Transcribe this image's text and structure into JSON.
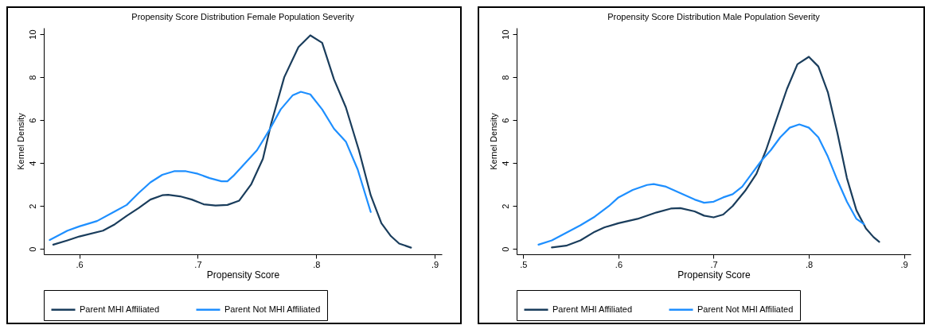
{
  "chart_data": [
    {
      "type": "line",
      "title": "Propensity Score Distribution Female Population Severity",
      "xlabel": "Propensity Score",
      "ylabel": "Kernel Density",
      "xlim": [
        0.57,
        0.906
      ],
      "ylim": [
        -0.25,
        10.3
      ],
      "xticks": [
        {
          "value": 0.6,
          "label": ".6"
        },
        {
          "value": 0.7,
          "label": ".7"
        },
        {
          "value": 0.8,
          "label": ".8"
        },
        {
          "value": 0.9,
          "label": ".9"
        }
      ],
      "yticks": [
        0,
        2,
        4,
        6,
        8,
        10
      ],
      "grid": false,
      "legend": "bottom",
      "marker": "none",
      "line_style": "solid",
      "series": [
        {
          "name": "Parent MHI Affiliated",
          "color": "#1a3d5c",
          "x": [
            0.578,
            0.59,
            0.6,
            0.62,
            0.63,
            0.64,
            0.65,
            0.66,
            0.67,
            0.675,
            0.685,
            0.695,
            0.705,
            0.715,
            0.725,
            0.735,
            0.745,
            0.755,
            0.762,
            0.773,
            0.785,
            0.795,
            0.805,
            0.815,
            0.825,
            0.836,
            0.846,
            0.855,
            0.863,
            0.87,
            0.88
          ],
          "values": [
            0.2,
            0.4,
            0.58,
            0.85,
            1.15,
            1.54,
            1.9,
            2.3,
            2.5,
            2.52,
            2.45,
            2.3,
            2.08,
            2.02,
            2.05,
            2.25,
            3.0,
            4.2,
            5.85,
            8.0,
            9.4,
            9.95,
            9.6,
            7.9,
            6.6,
            4.6,
            2.5,
            1.2,
            0.6,
            0.25,
            0.06
          ]
        },
        {
          "name": "Parent Not MHI Affiliated",
          "color": "#1e8fff",
          "x": [
            0.575,
            0.59,
            0.6,
            0.615,
            0.63,
            0.64,
            0.65,
            0.66,
            0.67,
            0.68,
            0.69,
            0.7,
            0.71,
            0.72,
            0.725,
            0.73,
            0.74,
            0.75,
            0.76,
            0.77,
            0.78,
            0.787,
            0.795,
            0.805,
            0.815,
            0.825,
            0.835,
            0.846
          ],
          "values": [
            0.42,
            0.85,
            1.05,
            1.3,
            1.75,
            2.05,
            2.6,
            3.1,
            3.45,
            3.62,
            3.62,
            3.5,
            3.3,
            3.15,
            3.15,
            3.4,
            4.0,
            4.6,
            5.5,
            6.5,
            7.15,
            7.32,
            7.2,
            6.5,
            5.6,
            5.0,
            3.7,
            1.72
          ]
        }
      ]
    },
    {
      "type": "line",
      "title": "Propensity Score Distribution Male Population Severity",
      "xlabel": "Propensity Score",
      "ylabel": "Kernel Density",
      "xlim": [
        0.493,
        0.907
      ],
      "ylim": [
        -0.25,
        10.3
      ],
      "xticks": [
        {
          "value": 0.5,
          "label": ".5"
        },
        {
          "value": 0.6,
          "label": ".6"
        },
        {
          "value": 0.7,
          "label": ".7"
        },
        {
          "value": 0.8,
          "label": ".8"
        },
        {
          "value": 0.9,
          "label": ".9"
        }
      ],
      "yticks": [
        0,
        2,
        4,
        6,
        8,
        10
      ],
      "grid": false,
      "legend": "bottom",
      "marker": "none",
      "line_style": "solid",
      "series": [
        {
          "name": "Parent MHI Affiliated",
          "color": "#1a3d5c",
          "x": [
            0.53,
            0.545,
            0.56,
            0.575,
            0.585,
            0.6,
            0.62,
            0.64,
            0.655,
            0.665,
            0.68,
            0.69,
            0.7,
            0.71,
            0.72,
            0.733,
            0.745,
            0.755,
            0.765,
            0.777,
            0.788,
            0.8,
            0.81,
            0.82,
            0.83,
            0.84,
            0.85,
            0.86,
            0.868,
            0.874
          ],
          "values": [
            0.07,
            0.15,
            0.4,
            0.8,
            1.0,
            1.2,
            1.4,
            1.7,
            1.88,
            1.9,
            1.75,
            1.55,
            1.47,
            1.6,
            2.0,
            2.7,
            3.5,
            4.6,
            5.9,
            7.45,
            8.6,
            8.95,
            8.5,
            7.3,
            5.4,
            3.3,
            1.8,
            0.95,
            0.55,
            0.33
          ]
        },
        {
          "name": "Parent Not MHI Affiliated",
          "color": "#1e8fff",
          "x": [
            0.516,
            0.53,
            0.545,
            0.56,
            0.575,
            0.59,
            0.6,
            0.615,
            0.63,
            0.637,
            0.65,
            0.665,
            0.68,
            0.69,
            0.7,
            0.71,
            0.72,
            0.73,
            0.74,
            0.75,
            0.76,
            0.77,
            0.78,
            0.79,
            0.8,
            0.81,
            0.82,
            0.83,
            0.84,
            0.85,
            0.858
          ],
          "values": [
            0.2,
            0.4,
            0.75,
            1.1,
            1.5,
            2.0,
            2.4,
            2.75,
            2.98,
            3.02,
            2.9,
            2.6,
            2.3,
            2.15,
            2.2,
            2.4,
            2.55,
            2.9,
            3.5,
            4.1,
            4.6,
            5.2,
            5.65,
            5.8,
            5.65,
            5.2,
            4.3,
            3.2,
            2.2,
            1.4,
            1.15
          ]
        }
      ]
    }
  ]
}
